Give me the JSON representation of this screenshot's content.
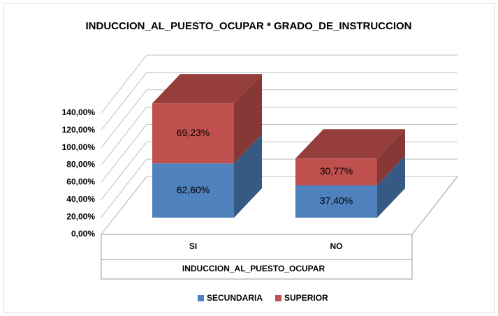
{
  "chart_data": {
    "type": "bar3d_stacked",
    "title": "INDUCCION_AL_PUESTO_OCUPAR * GRADO_DE_INSTRUCCION",
    "x_label": "INDUCCION_AL_PUESTO_OCUPAR",
    "categories": [
      "SI",
      "NO"
    ],
    "series": [
      {
        "name": "SECUNDARIA",
        "color": "#4f81bd",
        "values": [
          62.6,
          37.4
        ],
        "value_labels": [
          "62,60%",
          "37,40%"
        ]
      },
      {
        "name": "SUPERIOR",
        "color": "#c0504d",
        "values": [
          69.23,
          30.77
        ],
        "value_labels": [
          "69,23%",
          "30,77%"
        ]
      }
    ],
    "ylim": [
      0,
      140
    ],
    "yticks": [
      {
        "value": 0,
        "label": "0,00%"
      },
      {
        "value": 20,
        "label": "20,00%"
      },
      {
        "value": 40,
        "label": "40,00%"
      },
      {
        "value": 60,
        "label": "60,00%"
      },
      {
        "value": 80,
        "label": "80,00%"
      },
      {
        "value": 100,
        "label": "100,00%"
      },
      {
        "value": 120,
        "label": "120,00%"
      },
      {
        "value": 140,
        "label": "140,00%"
      }
    ],
    "grid": true,
    "legend": "bottom"
  }
}
